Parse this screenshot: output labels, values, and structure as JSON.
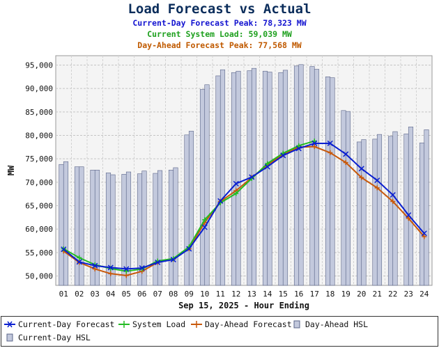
{
  "header": {
    "title": "Load Forecast vs Actual",
    "sub1": "Current-Day Forecast Peak:  78,323 MW",
    "sub2": "Current System Load:  59,039 MW",
    "sub3": "Day-Ahead Forecast Peak:  77,568 MW"
  },
  "colors": {
    "current_day": "#0a1fd0",
    "system_load": "#22bb22",
    "day_ahead": "#c8580a",
    "bar_fill": "#c3c9dd",
    "bar_stroke": "#5a6488"
  },
  "chart_data": {
    "type": "bar",
    "title": "Load Forecast vs Actual",
    "xlabel": "Sep 15, 2025 - Hour Ending",
    "ylabel": "MW",
    "ylim": [
      48000,
      97000
    ],
    "yticks": [
      50000,
      55000,
      60000,
      65000,
      70000,
      75000,
      80000,
      85000,
      90000,
      95000
    ],
    "grid": true,
    "legend_position": "bottom",
    "categories": [
      "01",
      "02",
      "03",
      "04",
      "05",
      "06",
      "07",
      "08",
      "09",
      "10",
      "11",
      "12",
      "13",
      "14",
      "15",
      "16",
      "17",
      "18",
      "19",
      "20",
      "21",
      "22",
      "23",
      "24"
    ],
    "series": [
      {
        "name": "Current-Day Forecast",
        "type": "line",
        "marker": "x",
        "values": [
          55700,
          53000,
          52200,
          51800,
          51500,
          51700,
          52900,
          53500,
          55800,
          60400,
          66000,
          69700,
          71100,
          73300,
          75700,
          77200,
          78300,
          78300,
          76000,
          72900,
          70400,
          67300,
          63000,
          59100
        ]
      },
      {
        "name": "System Load",
        "type": "line",
        "marker": "+",
        "values": [
          55800,
          53900,
          52400,
          51600,
          51000,
          51500,
          53200,
          53700,
          56200,
          62000,
          65600,
          67600,
          70800,
          74000,
          76200,
          77800,
          78800,
          null,
          null,
          null,
          null,
          null,
          null,
          null
        ]
      },
      {
        "name": "Day-Ahead Forecast",
        "type": "line",
        "marker": "+",
        "values": [
          55300,
          52900,
          51500,
          50500,
          50100,
          51000,
          52900,
          53600,
          55800,
          61400,
          65900,
          68200,
          71000,
          73700,
          75900,
          77500,
          77600,
          76300,
          74200,
          71000,
          68800,
          65900,
          62300,
          58400
        ]
      },
      {
        "name": "Day-Ahead HSL",
        "type": "bar",
        "values": [
          73800,
          73300,
          72600,
          72000,
          71700,
          71800,
          71900,
          72600,
          80100,
          89800,
          92700,
          93400,
          93800,
          93700,
          93400,
          94800,
          94700,
          92500,
          85300,
          78600,
          79200,
          79800,
          80300,
          78400
        ]
      },
      {
        "name": "Current-Day HSL",
        "type": "bar",
        "values": [
          74400,
          73300,
          72600,
          71600,
          72200,
          72400,
          72500,
          73100,
          80900,
          90800,
          94000,
          93700,
          94300,
          93500,
          93900,
          95100,
          94100,
          92300,
          85100,
          79100,
          80200,
          80800,
          81800,
          81200
        ]
      }
    ]
  }
}
